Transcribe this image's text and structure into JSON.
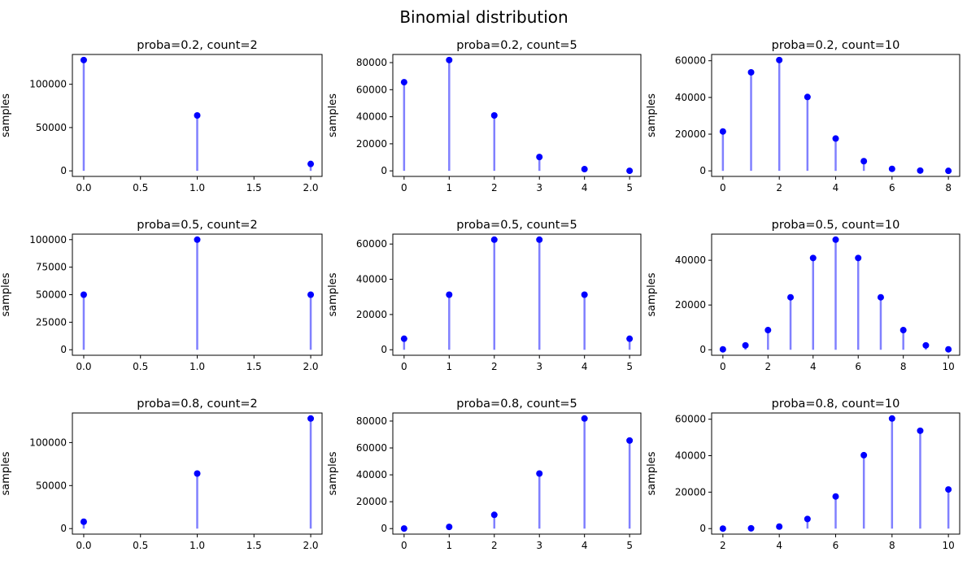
{
  "chart_data": {
    "title": "Binomial distribution",
    "type": "stem",
    "colors": {
      "marker": "#0000ff",
      "stem": "#8080ff"
    },
    "grid": false,
    "subplots": [
      {
        "title": "proba=0.2, count=2",
        "ylabel": "samples",
        "x": [
          0,
          1,
          2
        ],
        "y": [
          128000,
          64000,
          8000
        ],
        "xticks": [
          "0.0",
          "0.5",
          "1.0",
          "1.5",
          "2.0"
        ],
        "xtick_values": [
          0,
          0.5,
          1,
          1.5,
          2
        ],
        "yticks": [
          0,
          50000,
          100000
        ]
      },
      {
        "title": "proba=0.2, count=5",
        "ylabel": "samples",
        "x": [
          0,
          1,
          2,
          3,
          4,
          5
        ],
        "y": [
          65536,
          81920,
          40960,
          10240,
          1280,
          64
        ],
        "xticks": [
          "0",
          "1",
          "2",
          "3",
          "4",
          "5"
        ],
        "xtick_values": [
          0,
          1,
          2,
          3,
          4,
          5
        ],
        "yticks": [
          0,
          20000,
          40000,
          60000,
          80000
        ]
      },
      {
        "title": "proba=0.2, count=10",
        "ylabel": "samples",
        "x": [
          0,
          1,
          2,
          3,
          4,
          5,
          6,
          7,
          8
        ],
        "y": [
          21475,
          53687,
          60398,
          40265,
          17616,
          5285,
          1101,
          157,
          15
        ],
        "xticks": [
          "0",
          "2",
          "4",
          "6",
          "8"
        ],
        "xtick_values": [
          0,
          2,
          4,
          6,
          8
        ],
        "yticks": [
          0,
          20000,
          40000,
          60000
        ]
      },
      {
        "title": "proba=0.5, count=2",
        "ylabel": "samples",
        "x": [
          0,
          1,
          2
        ],
        "y": [
          50000,
          100000,
          50000
        ],
        "xticks": [
          "0.0",
          "0.5",
          "1.0",
          "1.5",
          "2.0"
        ],
        "xtick_values": [
          0,
          0.5,
          1,
          1.5,
          2
        ],
        "yticks": [
          0,
          25000,
          50000,
          75000,
          100000
        ]
      },
      {
        "title": "proba=0.5, count=5",
        "ylabel": "samples",
        "x": [
          0,
          1,
          2,
          3,
          4,
          5
        ],
        "y": [
          6250,
          31250,
          62500,
          62500,
          31250,
          6250
        ],
        "xticks": [
          "0",
          "1",
          "2",
          "3",
          "4",
          "5"
        ],
        "xtick_values": [
          0,
          1,
          2,
          3,
          4,
          5
        ],
        "yticks": [
          0,
          20000,
          40000,
          60000
        ]
      },
      {
        "title": "proba=0.5, count=10",
        "ylabel": "samples",
        "x": [
          0,
          1,
          2,
          3,
          4,
          5,
          6,
          7,
          8,
          9,
          10
        ],
        "y": [
          195,
          1953,
          8789,
          23438,
          41016,
          49219,
          41016,
          23438,
          8789,
          1953,
          195
        ],
        "xticks": [
          "0",
          "2",
          "4",
          "6",
          "8",
          "10"
        ],
        "xtick_values": [
          0,
          2,
          4,
          6,
          8,
          10
        ],
        "yticks": [
          0,
          20000,
          40000
        ]
      },
      {
        "title": "proba=0.8, count=2",
        "ylabel": "samples",
        "x": [
          0,
          1,
          2
        ],
        "y": [
          8000,
          64000,
          128000
        ],
        "xticks": [
          "0.0",
          "0.5",
          "1.0",
          "1.5",
          "2.0"
        ],
        "xtick_values": [
          0,
          0.5,
          1,
          1.5,
          2
        ],
        "yticks": [
          0,
          50000,
          100000
        ]
      },
      {
        "title": "proba=0.8, count=5",
        "ylabel": "samples",
        "x": [
          0,
          1,
          2,
          3,
          4,
          5
        ],
        "y": [
          64,
          1280,
          10240,
          40960,
          81920,
          65536
        ],
        "xticks": [
          "0",
          "1",
          "2",
          "3",
          "4",
          "5"
        ],
        "xtick_values": [
          0,
          1,
          2,
          3,
          4,
          5
        ],
        "yticks": [
          0,
          20000,
          40000,
          60000,
          80000
        ]
      },
      {
        "title": "proba=0.8, count=10",
        "ylabel": "samples",
        "x": [
          2,
          3,
          4,
          5,
          6,
          7,
          8,
          9,
          10
        ],
        "y": [
          15,
          157,
          1101,
          5285,
          17616,
          40265,
          60398,
          53687,
          21475
        ],
        "xticks": [
          "2",
          "4",
          "6",
          "8",
          "10"
        ],
        "xtick_values": [
          2,
          4,
          6,
          8,
          10
        ],
        "yticks": [
          0,
          20000,
          40000,
          60000
        ]
      }
    ]
  }
}
